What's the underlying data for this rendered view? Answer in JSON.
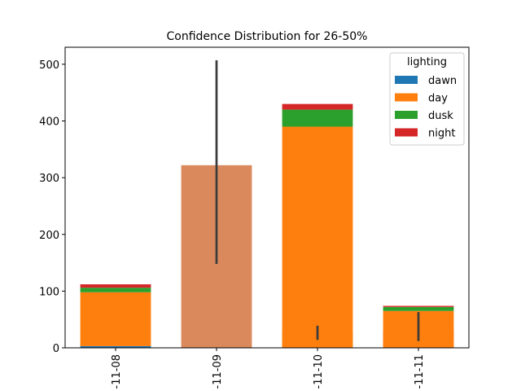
{
  "chart_data": {
    "type": "bar",
    "title": "Confidence Distribution for 26-50%",
    "xlabel": "",
    "ylabel": "",
    "ylim": [
      0,
      530
    ],
    "yticks": [
      0,
      100,
      200,
      300,
      400,
      500
    ],
    "categories": [
      "-11-08",
      "-11-09",
      "-11-10",
      "-11-11"
    ],
    "stacked_series": [
      {
        "name": "dawn",
        "color": "#1f77b4",
        "values": [
          3,
          0,
          0,
          0
        ]
      },
      {
        "name": "day",
        "color": "#ff7f0e",
        "values": [
          95,
          0,
          390,
          65
        ]
      },
      {
        "name": "dusk",
        "color": "#2ca02c",
        "values": [
          8,
          0,
          30,
          7
        ]
      },
      {
        "name": "night",
        "color": "#d62728",
        "values": [
          6,
          0,
          10,
          2
        ]
      }
    ],
    "overlay_bars": [
      {
        "category": "-11-08",
        "value": 0,
        "color": "#1f77b4",
        "opacity": 0.7,
        "error": [
          3,
          3
        ]
      },
      {
        "category": "-11-09",
        "value": 322,
        "color": "#d9895c",
        "opacity": 1.0,
        "error": [
          148,
          507
        ]
      },
      {
        "category": "-11-10",
        "value": 26,
        "color": "#6cbf6c",
        "opacity": 1.0,
        "error": [
          14,
          39
        ]
      },
      {
        "category": "-11-11",
        "value": 31,
        "color": "#c96c6c",
        "opacity": 1.0,
        "error": [
          12,
          63
        ]
      }
    ],
    "legend": {
      "title": "lighting",
      "placement": "top-right",
      "entries": [
        {
          "label": "dawn",
          "color": "#1f77b4"
        },
        {
          "label": "day",
          "color": "#ff7f0e"
        },
        {
          "label": "dusk",
          "color": "#2ca02c"
        },
        {
          "label": "night",
          "color": "#d62728"
        }
      ]
    },
    "grid": false
  }
}
